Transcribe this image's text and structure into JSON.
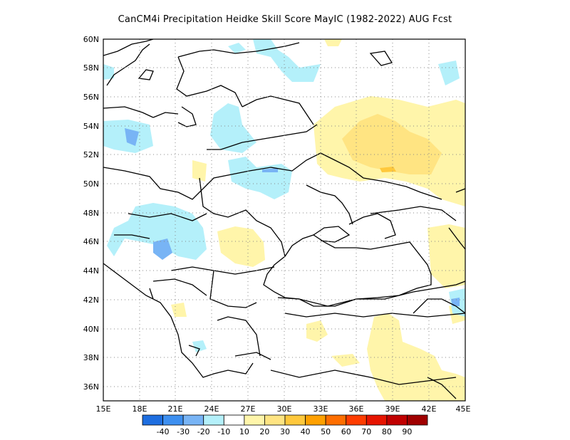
{
  "title": "CanCM4i  Precipitation Heidke Skill Score MayIC (1982-2022) AUG Fcst",
  "map": {
    "lon_range": [
      15,
      45
    ],
    "lat_range": [
      35,
      60
    ],
    "lon_ticks": [
      "15E",
      "18E",
      "21E",
      "24E",
      "27E",
      "30E",
      "33E",
      "36E",
      "39E",
      "42E",
      "45E"
    ],
    "lat_ticks": [
      "36N",
      "38N",
      "40N",
      "42N",
      "44N",
      "46N",
      "48N",
      "50N",
      "52N",
      "54N",
      "56N",
      "58N",
      "60N"
    ],
    "grid": "dotted",
    "region": "Eastern Europe / Black Sea"
  },
  "colorbar": {
    "labels": [
      "-40",
      "-30",
      "-20",
      "-10",
      "10",
      "20",
      "30",
      "40",
      "50",
      "60",
      "70",
      "80",
      "90"
    ],
    "colors": [
      "#1e6ee0",
      "#3d8ff0",
      "#78b4f5",
      "#b4f0fa",
      "#ffffff",
      "#fff5aa",
      "#ffe482",
      "#ffc83c",
      "#ffa000",
      "#ff6e00",
      "#ff3c00",
      "#e61400",
      "#c00000",
      "#a00000"
    ]
  }
}
